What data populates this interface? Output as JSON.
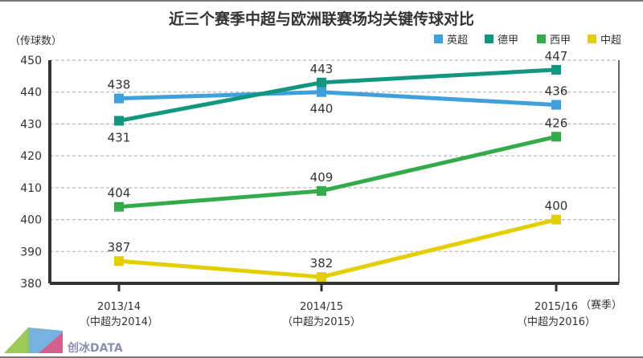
{
  "chart_data": {
    "type": "line",
    "title": "近三个赛季中超与欧洲联赛场均关键传球对比",
    "ylabel": "（传球数）",
    "xlabel": "（赛季）",
    "ylim": [
      380,
      450
    ],
    "yticks": [
      380,
      390,
      400,
      410,
      420,
      430,
      440,
      450
    ],
    "grid": true,
    "legend_position": "top-right",
    "categories": [
      "2013/14",
      "2014/15",
      "2015/16"
    ],
    "category_sublabels": [
      "（中超为2014）",
      "（中超为2015）",
      "（中超为2016）"
    ],
    "series": [
      {
        "name": "英超",
        "color": "#3fa0dc",
        "values": [
          438,
          440,
          436
        ]
      },
      {
        "name": "德甲",
        "color": "#13967f",
        "values": [
          431,
          443,
          447
        ]
      },
      {
        "name": "西甲",
        "color": "#33ab4a",
        "values": [
          404,
          409,
          426
        ]
      },
      {
        "name": "中超",
        "color": "#e3cf00",
        "values": [
          387,
          382,
          400
        ]
      }
    ]
  },
  "logo": {
    "text": "创冰DATA"
  }
}
